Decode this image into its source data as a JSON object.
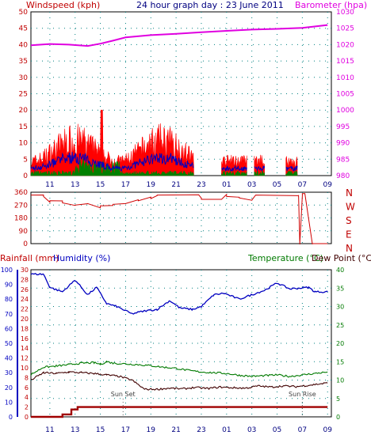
{
  "header": {
    "left_label": "Windspeed (kph)",
    "title": "24 hour graph day : 23 June 2011",
    "right_label": "Barometer (hpa)"
  },
  "colors": {
    "wind": "#ff0000",
    "gust": "#ff0000",
    "wind_avg": "#0000c0",
    "wind_green": "#008000",
    "barometer": "#e000e0",
    "direction": "#d00000",
    "rain_axis": "#c00000",
    "humidity": "#0000c0",
    "temperature": "#007a00",
    "dewpoint": "#400000",
    "rainfall": "#a00000",
    "left_axis_text": "#c00000",
    "right_axis_text": "#e000e0",
    "humidity_axis_text": "#0000c0",
    "temp_axis_text": "#007a00",
    "grid": "#008080"
  },
  "x_ticks": [
    "11",
    "13",
    "15",
    "17",
    "19",
    "21",
    "23",
    "01",
    "03",
    "05",
    "07",
    "09"
  ],
  "panel1": {
    "left_ticks": [
      "50",
      "45",
      "40",
      "35",
      "30",
      "25",
      "20",
      "15",
      "10",
      "5",
      "0"
    ],
    "right_ticks": [
      "1030",
      "1025",
      "1020",
      "1015",
      "1010",
      "1005",
      "1000",
      "995",
      "990",
      "985",
      "980"
    ]
  },
  "panel2": {
    "ticks": [
      "360",
      "270",
      "180",
      "90",
      "0"
    ],
    "dir_labels": [
      "N",
      "W",
      "S",
      "E",
      "N"
    ]
  },
  "panel3": {
    "rain_label": "Rainfall (mm)",
    "humidity_label": "Humidity (%)",
    "temp_label": "Temperature (°C)",
    "dew_label": "Dew Point (°C)",
    "rain_ticks": [
      "30",
      "28",
      "26",
      "24",
      "22",
      "20",
      "18",
      "16",
      "14",
      "12",
      "10",
      "8",
      "6",
      "4",
      "2",
      "0"
    ],
    "humidity_ticks": [
      "100",
      "90",
      "80",
      "70",
      "60",
      "50",
      "40",
      "30",
      "20",
      "10",
      "0"
    ],
    "temp_ticks": [
      "40",
      "35",
      "30",
      "25",
      "20",
      "15",
      "10",
      "5",
      "0"
    ],
    "annotations": {
      "sunset": "Sun Set",
      "sunrise": "Sun Rise"
    }
  },
  "chart_data": [
    {
      "type": "line",
      "title": "24 hour graph day : 23 June 2011",
      "x_unit": "hour of day (09:00 23 June to 09:00 next day)",
      "ylabel": "Windspeed (kph)",
      "y2label": "Barometer (hpa)",
      "ylim": [
        0,
        50
      ],
      "y2lim": [
        980,
        1030
      ],
      "series": [
        {
          "name": "Barometer (hpa)",
          "axis": "right",
          "x": [
            9.5,
            11,
            12.5,
            14,
            15,
            16,
            17,
            19,
            21,
            23,
            25,
            27,
            29,
            31,
            33
          ],
          "values": [
            1019.8,
            1020.2,
            1020.0,
            1019.6,
            1020.3,
            1021.2,
            1022.2,
            1022.9,
            1023.3,
            1023.8,
            1024.2,
            1024.6,
            1024.8,
            1025.1,
            1026.0
          ]
        },
        {
          "name": "Windspeed (kph)",
          "axis": "left",
          "segments": [
            [
              9.5,
              22.4
            ],
            [
              24.6,
              26.6
            ],
            [
              27.2,
              28.0
            ],
            [
              29.7,
              30.6
            ]
          ],
          "typical_max": 15,
          "peak": 20,
          "peak_x": 15.1
        }
      ]
    },
    {
      "type": "line",
      "ylabel": "Wind direction",
      "ylim": [
        0,
        360
      ],
      "series": [
        {
          "name": "Wind direction",
          "x": [
            9.5,
            10.5,
            11.0,
            12.0,
            13.0,
            14.0,
            15.0,
            16.0,
            17.0,
            18.0,
            19.0,
            19.5,
            22.8,
            23.0,
            24.6,
            25.0,
            26.0,
            27.0,
            27.3,
            30.7,
            30.8,
            31.0,
            31.2,
            31.8,
            33.0
          ],
          "values": [
            340,
            330,
            300,
            285,
            270,
            280,
            265,
            275,
            280,
            300,
            315,
            340,
            340,
            310,
            310,
            330,
            320,
            305,
            340,
            340,
            0,
            350,
            350,
            0,
            0
          ]
        }
      ]
    },
    {
      "type": "line",
      "ylabel": "Rainfall (mm) / Humidity (%)",
      "y2label": "Temperature (°C) / Dew Point (°C)",
      "ylim": [
        0,
        100
      ],
      "y2lim": [
        0,
        40
      ],
      "series": [
        {
          "name": "Humidity (%)",
          "axis": "left",
          "x": [
            9.5,
            10.5,
            11.0,
            12.0,
            13.0,
            14.0,
            14.7,
            15.5,
            16.3,
            17.5,
            18.5,
            19.5,
            20.5,
            21.3,
            22.3,
            23.0,
            24.0,
            24.8,
            26.0,
            27.0,
            28.0,
            29.0,
            30.0,
            31.5,
            32.0,
            33.0
          ],
          "values": [
            97,
            97,
            88,
            85,
            93,
            83,
            88,
            77,
            75,
            70,
            72,
            73,
            79,
            74,
            73,
            75,
            83,
            84,
            80,
            83,
            86,
            91,
            87,
            88,
            85,
            85
          ]
        },
        {
          "name": "Temperature (°C)",
          "axis": "right",
          "x": [
            9.5,
            10.5,
            11.5,
            12.5,
            13.5,
            14.5,
            15.0,
            15.5,
            16.0,
            17.0,
            18.0,
            19.0,
            20.0,
            21.0,
            22.0,
            23.0,
            24.0,
            25.0,
            26.0,
            27.0,
            28.0,
            29.0,
            30.0,
            31.0,
            32.0,
            33.0
          ],
          "values": [
            11.5,
            13.5,
            13.8,
            14.2,
            14.6,
            14.7,
            14.3,
            15.0,
            14.6,
            14.4,
            14.2,
            13.9,
            13.5,
            13.2,
            12.6,
            12.2,
            12.0,
            11.8,
            11.3,
            11.0,
            11.2,
            11.4,
            11.0,
            11.4,
            11.8,
            12.2
          ]
        },
        {
          "name": "Dew Point (°C)",
          "axis": "right",
          "x": [
            9.5,
            10.5,
            11.5,
            12.5,
            13.5,
            14.5,
            15.5,
            16.5,
            17.5,
            18.5,
            19.5,
            20.5,
            21.5,
            22.5,
            23.5,
            24.5,
            25.5,
            26.5,
            27.5,
            28.5,
            29.5,
            30.5,
            31.5,
            32.5,
            33.0
          ],
          "values": [
            10.0,
            12.0,
            11.8,
            12.2,
            12.0,
            11.8,
            11.4,
            11.0,
            10.0,
            7.5,
            7.5,
            7.8,
            7.6,
            8.0,
            7.7,
            8.1,
            7.9,
            7.8,
            8.4,
            8.1,
            8.4,
            8.2,
            8.6,
            9.0,
            9.2
          ]
        },
        {
          "name": "Rainfall (mm)",
          "axis": "rain",
          "x": [
            9.5,
            11.5,
            12.0,
            12.7,
            13.2,
            14.0,
            33.0
          ],
          "values": [
            0,
            0,
            0.5,
            1.5,
            2.0,
            2.0,
            2.0
          ]
        }
      ]
    }
  ]
}
